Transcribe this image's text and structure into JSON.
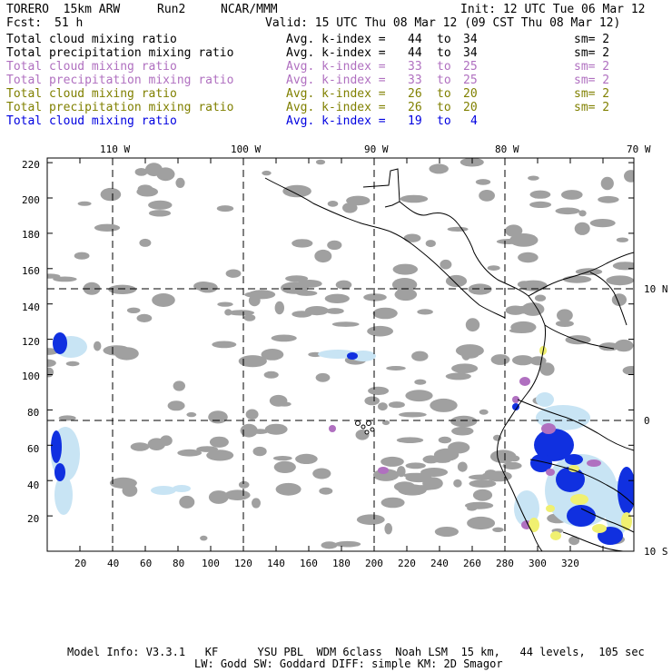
{
  "header": {
    "model": "TORERO  15km ARW",
    "run": "Run2",
    "org": "NCAR/MMM",
    "init": "Init: 12 UTC Tue 06 Mar 12",
    "fcst_label": "Fcst:",
    "fcst_value": "51 h",
    "valid": "Valid: 15 UTC Thu 08 Mar 12 (09 CST Thu 08 Mar 12)"
  },
  "legend": [
    {
      "field": "Total cloud mixing ratio",
      "avg": "Avg. k-index =",
      "from": "44",
      "to_label": "to",
      "to": "34",
      "sm": "sm= 2",
      "color": "#000000"
    },
    {
      "field": "Total precipitation mixing ratio",
      "avg": "Avg. k-index =",
      "from": "44",
      "to_label": "to",
      "to": "34",
      "sm": "sm= 2",
      "color": "#000000"
    },
    {
      "field": "Total cloud mixing ratio",
      "avg": "Avg. k-index =",
      "from": "33",
      "to_label": "to",
      "to": "25",
      "sm": "sm= 2",
      "color": "#b070c0"
    },
    {
      "field": "Total precipitation mixing ratio",
      "avg": "Avg. k-index =",
      "from": "33",
      "to_label": "to",
      "to": "25",
      "sm": "sm= 2",
      "color": "#b070c0"
    },
    {
      "field": "Total cloud mixing ratio",
      "avg": "Avg. k-index =",
      "from": "26",
      "to_label": "to",
      "to": "20",
      "sm": "sm= 2",
      "color": "#808000"
    },
    {
      "field": "Total precipitation mixing ratio",
      "avg": "Avg. k-index =",
      "from": "26",
      "to_label": "to",
      "to": "20",
      "sm": "sm= 2",
      "color": "#808000"
    },
    {
      "field": "Total cloud mixing ratio",
      "avg": "Avg. k-index =",
      "from": "19",
      "to_label": "to",
      "to": "4",
      "sm": "",
      "color": "#0000e0"
    }
  ],
  "map": {
    "lon_labels": [
      "110 W",
      "100 W",
      "90 W",
      "80 W",
      "70 W"
    ],
    "lat_labels": [
      "10 N",
      "0",
      "10 S"
    ],
    "x_ticks": [
      "20",
      "40",
      "60",
      "80",
      "100",
      "120",
      "140",
      "160",
      "180",
      "200",
      "220",
      "240",
      "260",
      "280",
      "300",
      "320"
    ],
    "y_ticks": [
      "20",
      "40",
      "60",
      "80",
      "100",
      "120",
      "140",
      "160",
      "180",
      "200",
      "220"
    ],
    "colors": {
      "gray_cloud": "#a0a0a0",
      "light_blue": "#c8e4f4",
      "blue": "#1030e0",
      "purple": "#b070c0",
      "yellow": "#f0f070"
    }
  },
  "footer": {
    "line1": "Model Info: V3.3.1   KF      YSU PBL  WDM 6class  Noah LSM  15 km,   44 levels,  105 sec",
    "line2": "LW: Godd SW: Goddard DIFF: simple KM: 2D Smagor"
  }
}
